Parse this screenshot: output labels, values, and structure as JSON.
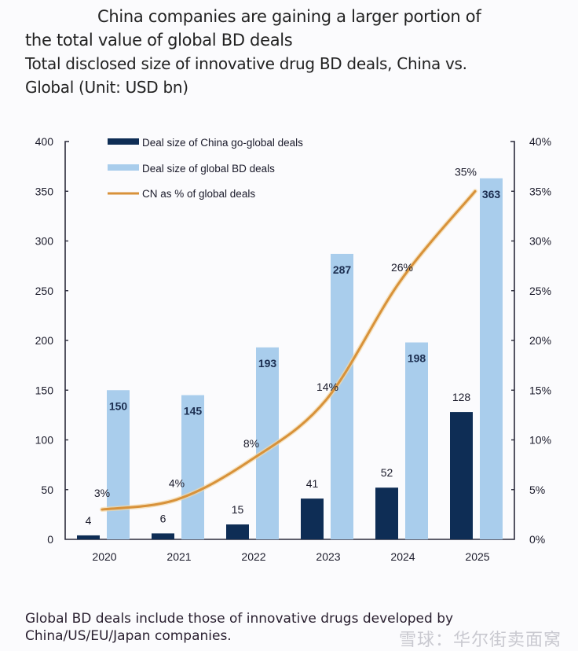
{
  "header": {
    "title_line1": "China companies are gaining a larger portion of",
    "title_line2": "the total value of global BD deals",
    "subtitle_line1": "Total disclosed size of innovative drug BD deals, China vs.",
    "subtitle_line2": "Global (Unit: USD bn)"
  },
  "footnote": {
    "line1": "Global BD deals include those of innovative drugs developed by",
    "line2": "China/US/EU/Japan companies."
  },
  "watermark": "雪球：华尔街卖面窝",
  "colors": {
    "china_bar": "#0e2d55",
    "global_bar": "#a9cdec",
    "line": "#d8923a",
    "axis": "#2b2b3b"
  },
  "chart_data": {
    "type": "bar",
    "title": "China companies are gaining a larger portion of the total value of global BD deals",
    "subtitle": "Total disclosed size of innovative drug BD deals, China vs. Global (Unit: USD bn)",
    "categories": [
      "2020",
      "2021",
      "2022",
      "2023",
      "2024",
      "2025"
    ],
    "series": [
      {
        "name": "Deal size of China go-global deals",
        "type": "bar",
        "axis": "left",
        "values": [
          4,
          6,
          15,
          41,
          52,
          128
        ],
        "labels": [
          "4",
          "6",
          "15",
          "41",
          "52",
          "128"
        ]
      },
      {
        "name": "Deal size of global BD deals",
        "type": "bar",
        "axis": "left",
        "values": [
          150,
          145,
          193,
          287,
          198,
          363
        ],
        "labels": [
          "150",
          "145",
          "193",
          "287",
          "198",
          "363"
        ]
      },
      {
        "name": "CN as % of global deals",
        "type": "line",
        "axis": "right",
        "values": [
          3,
          4,
          8,
          14,
          26,
          35
        ],
        "labels": [
          "3%",
          "4%",
          "8%",
          "14%",
          "26%",
          "35%"
        ]
      }
    ],
    "left_axis": {
      "range": [
        0,
        400
      ],
      "ticks": [
        0,
        50,
        100,
        150,
        200,
        250,
        300,
        350,
        400
      ],
      "tick_labels": [
        "0",
        "50",
        "100",
        "150",
        "200",
        "250",
        "300",
        "350",
        "400"
      ]
    },
    "right_axis": {
      "range": [
        0,
        40
      ],
      "ticks": [
        0,
        5,
        10,
        15,
        20,
        25,
        30,
        35,
        40
      ],
      "tick_labels": [
        "0%",
        "5%",
        "10%",
        "15%",
        "20%",
        "25%",
        "30%",
        "35%",
        "40%"
      ]
    },
    "xlabel": "",
    "ylabel": "",
    "grid": false,
    "legend_position": "top-left"
  }
}
